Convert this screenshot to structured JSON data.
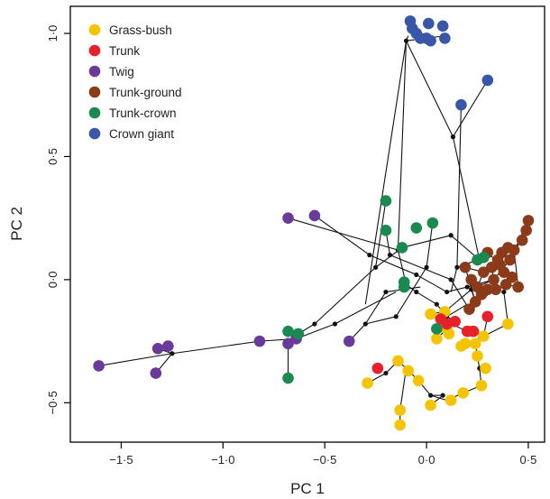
{
  "chart_data": {
    "type": "scatter",
    "xlabel": "PC 1",
    "ylabel": "PC 2",
    "xlim": [
      -1.75,
      0.58
    ],
    "ylim": [
      -0.66,
      1.11
    ],
    "xticks": [
      -1.5,
      -1.0,
      -0.5,
      0.0,
      0.5
    ],
    "yticks": [
      -0.5,
      0.0,
      0.5,
      1.0
    ],
    "xtick_labels": [
      "−1·5",
      "−1·0",
      "−0·5",
      "0·0",
      "0·5"
    ],
    "ytick_labels": [
      "−0·5",
      "0·0",
      "0·5",
      "1·0"
    ],
    "grid": false,
    "legend_position": "top-left",
    "series": [
      {
        "name": "Grass-bush",
        "color": "#f5c400",
        "x": [
          -0.29,
          -0.14,
          -0.09,
          -0.13,
          -0.13,
          -0.04,
          0.02,
          0.12,
          0.18,
          0.27,
          0.29,
          0.25,
          0.24,
          0.19,
          0.17,
          0.28,
          0.4,
          0.1,
          0.05,
          0.11,
          0.22,
          0.02,
          0.09
        ],
        "y": [
          -0.42,
          -0.33,
          -0.37,
          -0.53,
          -0.59,
          -0.41,
          -0.51,
          -0.49,
          -0.46,
          -0.43,
          -0.36,
          -0.31,
          -0.26,
          -0.26,
          -0.27,
          -0.23,
          -0.18,
          -0.2,
          -0.24,
          -0.22,
          -0.21,
          -0.14,
          -0.13
        ]
      },
      {
        "name": "Trunk",
        "color": "#e8202a",
        "x": [
          -0.24,
          0.07,
          0.1,
          0.14,
          0.2,
          0.23,
          0.3
        ],
        "y": [
          -0.36,
          -0.16,
          -0.18,
          -0.17,
          -0.21,
          -0.21,
          -0.15
        ]
      },
      {
        "name": "Twig",
        "color": "#6a3a9a",
        "x": [
          -0.68,
          -0.55,
          -1.61,
          -1.33,
          -1.32,
          -1.27,
          -0.82,
          -0.68,
          -0.64,
          -0.38
        ],
        "y": [
          0.25,
          0.26,
          -0.35,
          -0.38,
          -0.28,
          -0.27,
          -0.25,
          -0.26,
          -0.24,
          -0.25
        ]
      },
      {
        "name": "Trunk-ground",
        "color": "#8b3a1a",
        "x": [
          0.5,
          0.49,
          0.47,
          0.43,
          0.4,
          0.37,
          0.35,
          0.32,
          0.38,
          0.42,
          0.45,
          0.39,
          0.33,
          0.3,
          0.27,
          0.25,
          0.22,
          0.28,
          0.36,
          0.3,
          0.24,
          0.21,
          0.19,
          0.34,
          0.41
        ],
        "y": [
          0.24,
          0.2,
          0.16,
          0.12,
          0.13,
          0.11,
          0.08,
          0.05,
          0.03,
          0.01,
          -0.03,
          -0.02,
          0.0,
          -0.04,
          -0.06,
          -0.03,
          0.0,
          0.03,
          0.06,
          0.11,
          -0.09,
          -0.12,
          0.05,
          -0.04,
          0.08
        ]
      },
      {
        "name": "Trunk-crown",
        "color": "#1a8a50",
        "x": [
          -0.2,
          -0.2,
          -0.12,
          -0.05,
          0.03,
          0.25,
          0.28,
          -0.11,
          -0.11,
          -0.68,
          -0.63,
          -0.68,
          0.05
        ],
        "y": [
          0.32,
          0.2,
          0.13,
          0.21,
          0.23,
          0.08,
          0.09,
          -0.01,
          -0.03,
          -0.21,
          -0.22,
          -0.4,
          -0.2
        ]
      },
      {
        "name": "Crown giant",
        "color": "#3a56a8",
        "x": [
          -0.08,
          -0.07,
          -0.05,
          0.01,
          -0.03,
          0.0,
          0.02,
          0.08,
          0.09,
          0.17,
          0.3
        ],
        "y": [
          1.05,
          1.02,
          1.0,
          1.04,
          0.98,
          0.98,
          0.97,
          1.03,
          0.98,
          0.71,
          0.81
        ]
      }
    ],
    "tree_edges": [
      [
        [
          -0.09,
          0.99
        ],
        [
          -0.1,
          0.97
        ]
      ],
      [
        [
          -0.1,
          0.97
        ],
        [
          0.09,
          0.99
        ]
      ],
      [
        [
          -0.1,
          0.97
        ],
        [
          0.13,
          0.58
        ]
      ],
      [
        [
          0.13,
          0.58
        ],
        [
          0.3,
          0.81
        ]
      ],
      [
        [
          0.13,
          0.58
        ],
        [
          0.26,
          0.08
        ]
      ],
      [
        [
          -0.1,
          0.97
        ],
        [
          -0.3,
          -0.1
        ]
      ],
      [
        [
          -0.1,
          0.97
        ],
        [
          -0.14,
          0.12
        ]
      ],
      [
        [
          -0.14,
          0.12
        ],
        [
          -0.68,
          0.25
        ]
      ],
      [
        [
          -0.14,
          0.12
        ],
        [
          -0.1,
          -0.02
        ]
      ],
      [
        [
          -0.1,
          -0.02
        ],
        [
          -0.11,
          -0.01
        ]
      ],
      [
        [
          -0.1,
          -0.02
        ],
        [
          -0.05,
          -0.05
        ]
      ],
      [
        [
          -0.05,
          -0.05
        ],
        [
          0.05,
          -0.1
        ]
      ],
      [
        [
          0.05,
          -0.1
        ],
        [
          0.1,
          -0.15
        ]
      ],
      [
        [
          0.1,
          -0.15
        ],
        [
          0.14,
          -0.17
        ]
      ],
      [
        [
          0.1,
          -0.15
        ],
        [
          0.2,
          -0.1
        ]
      ],
      [
        [
          -0.55,
          0.26
        ],
        [
          -0.28,
          0.1
        ]
      ],
      [
        [
          -0.28,
          0.1
        ],
        [
          -0.05,
          0.02
        ]
      ],
      [
        [
          -0.05,
          0.02
        ],
        [
          0.1,
          -0.05
        ]
      ],
      [
        [
          0.1,
          -0.05
        ],
        [
          0.2,
          -0.03
        ]
      ],
      [
        [
          0.2,
          -0.03
        ],
        [
          0.33,
          0.0
        ]
      ],
      [
        [
          0.33,
          0.0
        ],
        [
          0.41,
          0.08
        ]
      ],
      [
        [
          0.41,
          0.08
        ],
        [
          0.5,
          0.24
        ]
      ],
      [
        [
          -0.2,
          0.2
        ],
        [
          -0.18,
          0.1
        ]
      ],
      [
        [
          -0.18,
          0.1
        ],
        [
          0.12,
          0.0
        ]
      ],
      [
        [
          0.12,
          0.0
        ],
        [
          0.21,
          -0.12
        ]
      ],
      [
        [
          0.03,
          0.23
        ],
        [
          0.0,
          0.05
        ]
      ],
      [
        [
          0.0,
          0.05
        ],
        [
          -0.15,
          -0.15
        ]
      ],
      [
        [
          -0.15,
          -0.15
        ],
        [
          -0.3,
          -0.18
        ]
      ],
      [
        [
          -0.3,
          -0.18
        ],
        [
          -0.38,
          -0.25
        ]
      ],
      [
        [
          -0.3,
          -0.18
        ],
        [
          -0.2,
          -0.05
        ]
      ],
      [
        [
          -0.2,
          -0.05
        ],
        [
          -0.03,
          -0.03
        ]
      ],
      [
        [
          0.17,
          0.71
        ],
        [
          0.15,
          0.05
        ]
      ],
      [
        [
          0.15,
          0.05
        ],
        [
          0.25,
          0.08
        ]
      ],
      [
        [
          0.15,
          0.05
        ],
        [
          0.12,
          -0.05
        ]
      ],
      [
        [
          -1.61,
          -0.35
        ],
        [
          -1.25,
          -0.3
        ]
      ],
      [
        [
          -1.25,
          -0.3
        ],
        [
          -0.82,
          -0.25
        ]
      ],
      [
        [
          -0.82,
          -0.25
        ],
        [
          -0.64,
          -0.24
        ]
      ],
      [
        [
          -1.25,
          -0.3
        ],
        [
          -1.32,
          -0.28
        ]
      ],
      [
        [
          -1.33,
          -0.38
        ],
        [
          -1.25,
          -0.3
        ]
      ],
      [
        [
          -0.64,
          -0.24
        ],
        [
          -0.45,
          -0.18
        ]
      ],
      [
        [
          -0.45,
          -0.18
        ],
        [
          -0.15,
          -0.05
        ]
      ],
      [
        [
          -0.68,
          -0.21
        ],
        [
          -0.63,
          -0.22
        ]
      ],
      [
        [
          -0.68,
          -0.4
        ],
        [
          -0.68,
          -0.25
        ]
      ],
      [
        [
          -0.68,
          -0.25
        ],
        [
          -0.63,
          -0.22
        ]
      ],
      [
        [
          -0.63,
          -0.22
        ],
        [
          -0.55,
          -0.18
        ]
      ],
      [
        [
          -0.55,
          -0.18
        ],
        [
          -0.25,
          0.05
        ]
      ],
      [
        [
          -0.25,
          0.05
        ],
        [
          -0.2,
          0.32
        ]
      ],
      [
        [
          -0.25,
          0.05
        ],
        [
          -0.12,
          0.13
        ]
      ],
      [
        [
          -0.12,
          0.13
        ],
        [
          0.12,
          0.18
        ]
      ],
      [
        [
          0.12,
          0.18
        ],
        [
          0.26,
          0.08
        ]
      ],
      [
        [
          -0.29,
          -0.42
        ],
        [
          -0.2,
          -0.38
        ]
      ],
      [
        [
          -0.2,
          -0.38
        ],
        [
          -0.14,
          -0.33
        ]
      ],
      [
        [
          -0.14,
          -0.33
        ],
        [
          -0.1,
          -0.36
        ]
      ],
      [
        [
          -0.1,
          -0.36
        ],
        [
          -0.04,
          -0.41
        ]
      ],
      [
        [
          -0.1,
          -0.36
        ],
        [
          -0.13,
          -0.53
        ]
      ],
      [
        [
          -0.13,
          -0.53
        ],
        [
          -0.13,
          -0.59
        ]
      ],
      [
        [
          -0.04,
          -0.41
        ],
        [
          0.02,
          -0.47
        ]
      ],
      [
        [
          0.02,
          -0.47
        ],
        [
          0.1,
          -0.49
        ]
      ],
      [
        [
          0.02,
          -0.47
        ],
        [
          0.08,
          -0.47
        ]
      ],
      [
        [
          0.08,
          -0.47
        ],
        [
          0.02,
          -0.51
        ]
      ],
      [
        [
          0.1,
          -0.49
        ],
        [
          0.18,
          -0.46
        ]
      ],
      [
        [
          0.18,
          -0.46
        ],
        [
          0.27,
          -0.43
        ]
      ],
      [
        [
          0.27,
          -0.43
        ],
        [
          0.26,
          -0.36
        ]
      ],
      [
        [
          0.26,
          -0.36
        ],
        [
          0.29,
          -0.36
        ]
      ],
      [
        [
          0.26,
          -0.36
        ],
        [
          0.25,
          -0.31
        ]
      ],
      [
        [
          0.25,
          -0.31
        ],
        [
          0.24,
          -0.26
        ]
      ],
      [
        [
          0.24,
          -0.26
        ],
        [
          0.19,
          -0.26
        ]
      ],
      [
        [
          0.19,
          -0.26
        ],
        [
          0.17,
          -0.27
        ]
      ],
      [
        [
          0.19,
          -0.26
        ],
        [
          0.28,
          -0.23
        ]
      ],
      [
        [
          0.28,
          -0.23
        ],
        [
          0.3,
          -0.15
        ]
      ],
      [
        [
          0.28,
          -0.23
        ],
        [
          0.4,
          -0.18
        ]
      ],
      [
        [
          0.4,
          -0.18
        ],
        [
          0.38,
          -0.05
        ]
      ],
      [
        [
          0.38,
          -0.05
        ],
        [
          0.41,
          0.01
        ]
      ],
      [
        [
          0.1,
          -0.2
        ],
        [
          0.05,
          -0.24
        ]
      ],
      [
        [
          0.1,
          -0.2
        ],
        [
          0.11,
          -0.22
        ]
      ],
      [
        [
          0.1,
          -0.2
        ],
        [
          0.07,
          -0.16
        ]
      ],
      [
        [
          0.02,
          -0.14
        ],
        [
          0.07,
          -0.16
        ]
      ],
      [
        [
          0.07,
          -0.16
        ],
        [
          0.2,
          -0.21
        ]
      ],
      [
        [
          0.2,
          -0.21
        ],
        [
          0.23,
          -0.21
        ]
      ],
      [
        [
          0.09,
          -0.13
        ],
        [
          0.02,
          -0.14
        ]
      ],
      [
        [
          0.09,
          -0.13
        ],
        [
          0.22,
          -0.04
        ]
      ],
      [
        [
          0.22,
          -0.04
        ],
        [
          0.33,
          0.0
        ]
      ],
      [
        [
          0.22,
          -0.04
        ],
        [
          0.29,
          -0.06
        ]
      ],
      [
        [
          0.29,
          -0.06
        ],
        [
          0.34,
          -0.04
        ]
      ],
      [
        [
          0.33,
          0.0
        ],
        [
          0.32,
          0.05
        ]
      ],
      [
        [
          0.32,
          0.05
        ],
        [
          0.37,
          0.11
        ]
      ],
      [
        [
          0.37,
          0.11
        ],
        [
          0.43,
          0.12
        ]
      ],
      [
        [
          0.43,
          0.12
        ],
        [
          0.47,
          0.16
        ]
      ],
      [
        [
          0.47,
          0.16
        ],
        [
          0.49,
          0.2
        ]
      ],
      [
        [
          0.43,
          0.12
        ],
        [
          0.45,
          -0.03
        ]
      ],
      [
        [
          0.45,
          -0.03
        ],
        [
          0.39,
          -0.02
        ]
      ],
      [
        [
          0.37,
          0.11
        ],
        [
          0.36,
          0.06
        ]
      ],
      [
        [
          0.36,
          0.06
        ],
        [
          0.3,
          0.11
        ]
      ],
      [
        [
          0.36,
          0.06
        ],
        [
          0.35,
          0.08
        ]
      ],
      [
        [
          0.22,
          -0.04
        ],
        [
          0.24,
          -0.09
        ]
      ],
      [
        [
          0.24,
          -0.09
        ],
        [
          0.21,
          -0.12
        ]
      ],
      [
        [
          0.24,
          -0.09
        ],
        [
          0.19,
          0.05
        ]
      ],
      [
        [
          0.19,
          0.05
        ],
        [
          0.28,
          0.03
        ]
      ],
      [
        [
          0.28,
          0.03
        ],
        [
          0.25,
          -0.03
        ]
      ],
      [
        [
          0.25,
          -0.03
        ],
        [
          0.27,
          -0.06
        ]
      ]
    ],
    "nodes": [
      [
        -0.1,
        0.97
      ],
      [
        0.13,
        0.58
      ],
      [
        -0.14,
        0.12
      ],
      [
        -0.1,
        -0.02
      ],
      [
        -0.05,
        -0.05
      ],
      [
        0.05,
        -0.1
      ],
      [
        0.1,
        -0.15
      ],
      [
        -0.28,
        0.1
      ],
      [
        -0.05,
        0.02
      ],
      [
        0.1,
        -0.05
      ],
      [
        0.2,
        -0.03
      ],
      [
        0.33,
        0.0
      ],
      [
        -0.18,
        0.1
      ],
      [
        0.12,
        0.0
      ],
      [
        0.0,
        0.05
      ],
      [
        -0.15,
        -0.15
      ],
      [
        -0.3,
        -0.18
      ],
      [
        -0.2,
        -0.05
      ],
      [
        0.15,
        0.05
      ],
      [
        -1.25,
        -0.3
      ],
      [
        -0.45,
        -0.18
      ],
      [
        -0.68,
        -0.25
      ],
      [
        -0.55,
        -0.18
      ],
      [
        -0.25,
        0.05
      ],
      [
        0.12,
        0.18
      ],
      [
        -0.2,
        -0.38
      ],
      [
        -0.1,
        -0.36
      ],
      [
        0.02,
        -0.47
      ],
      [
        0.08,
        -0.47
      ],
      [
        0.26,
        -0.36
      ],
      [
        0.19,
        -0.26
      ],
      [
        0.28,
        -0.23
      ],
      [
        0.38,
        -0.05
      ],
      [
        0.1,
        -0.2
      ],
      [
        0.07,
        -0.16
      ],
      [
        0.09,
        -0.13
      ],
      [
        0.22,
        -0.04
      ],
      [
        0.29,
        -0.06
      ],
      [
        0.32,
        0.05
      ],
      [
        0.37,
        0.11
      ],
      [
        0.43,
        0.12
      ],
      [
        0.36,
        0.06
      ],
      [
        0.24,
        -0.09
      ],
      [
        0.19,
        0.05
      ],
      [
        0.28,
        0.03
      ],
      [
        0.25,
        -0.03
      ]
    ]
  }
}
